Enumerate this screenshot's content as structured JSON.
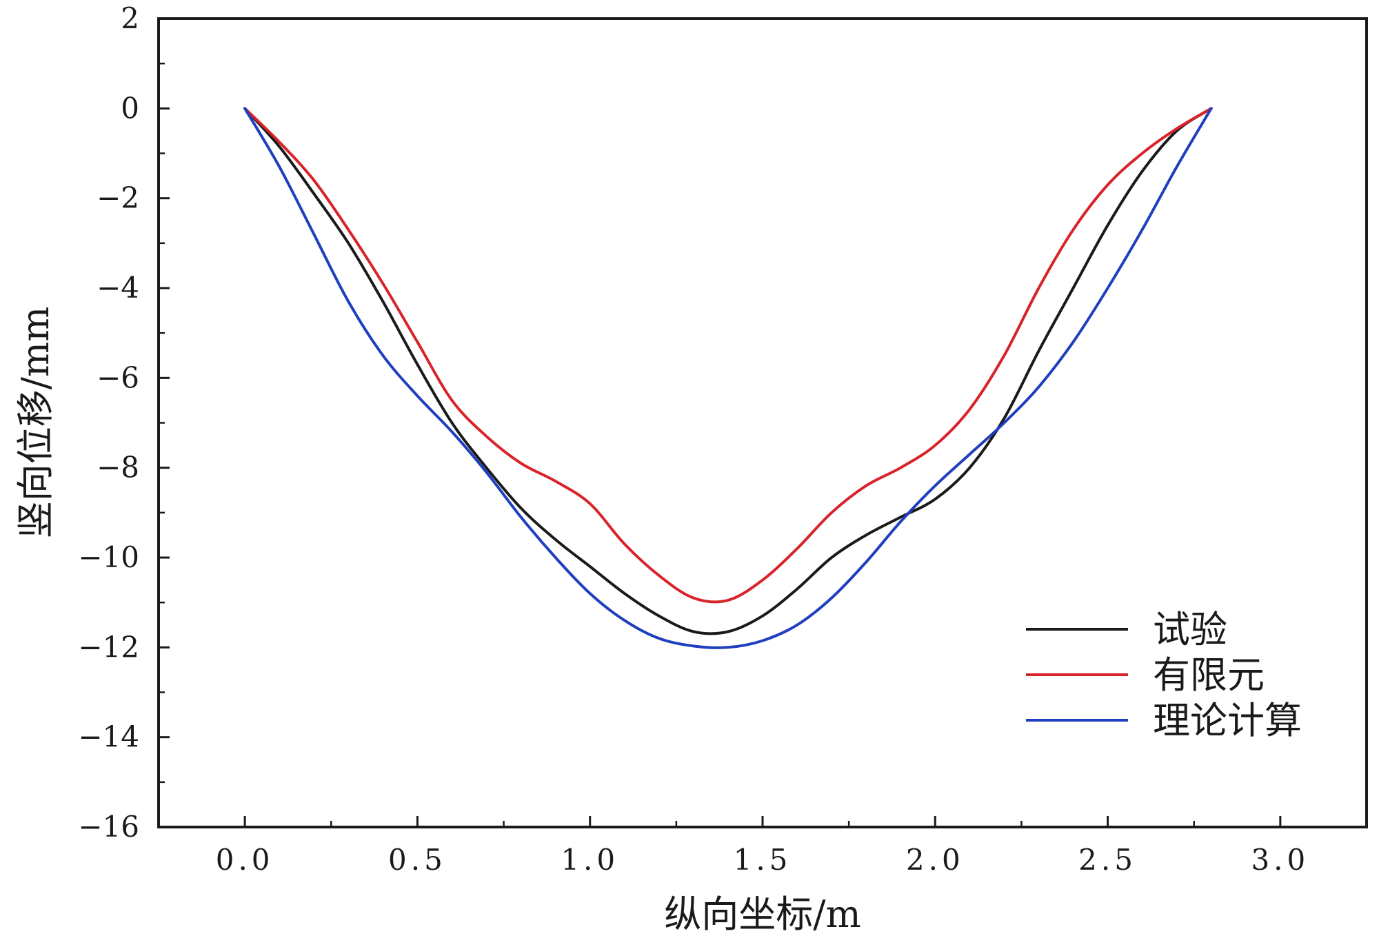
{
  "chart_data": {
    "type": "line",
    "xlabel": "纵向坐标/m",
    "ylabel": "竖向位移/mm",
    "xlim": [
      -0.25,
      3.25
    ],
    "ylim": [
      -16,
      2
    ],
    "xticks": [
      {
        "value": 0.0,
        "label": "0.0"
      },
      {
        "value": 0.5,
        "label": "0.5"
      },
      {
        "value": 1.0,
        "label": "1.0"
      },
      {
        "value": 1.5,
        "label": "1.5"
      },
      {
        "value": 2.0,
        "label": "2.0"
      },
      {
        "value": 2.5,
        "label": "2.5"
      },
      {
        "value": 3.0,
        "label": "3.0"
      }
    ],
    "yticks": [
      {
        "value": 2,
        "label": "2"
      },
      {
        "value": 0,
        "label": "0"
      },
      {
        "value": -2,
        "label": "−2"
      },
      {
        "value": -4,
        "label": "−4"
      },
      {
        "value": -6,
        "label": "−6"
      },
      {
        "value": -8,
        "label": "−8"
      },
      {
        "value": -10,
        "label": "−10"
      },
      {
        "value": -12,
        "label": "−12"
      },
      {
        "value": -14,
        "label": "−14"
      },
      {
        "value": -16,
        "label": "−16"
      }
    ],
    "legend_position": "bottom-right",
    "grid": false,
    "series": [
      {
        "name": "试验",
        "color": "#1a1a1a",
        "x": [
          0.0,
          0.1,
          0.2,
          0.3,
          0.4,
          0.5,
          0.6,
          0.7,
          0.8,
          0.9,
          1.0,
          1.1,
          1.2,
          1.3,
          1.4,
          1.5,
          1.6,
          1.7,
          1.8,
          1.9,
          2.0,
          2.1,
          2.2,
          2.3,
          2.4,
          2.5,
          2.6,
          2.7,
          2.8
        ],
        "y": [
          0.0,
          -0.85,
          -1.9,
          -3.0,
          -4.3,
          -5.7,
          -7.0,
          -8.0,
          -8.9,
          -9.6,
          -10.2,
          -10.8,
          -11.3,
          -11.65,
          -11.65,
          -11.3,
          -10.7,
          -10.0,
          -9.5,
          -9.1,
          -8.7,
          -8.0,
          -6.9,
          -5.4,
          -4.0,
          -2.6,
          -1.4,
          -0.5,
          0.0
        ]
      },
      {
        "name": "有限元",
        "color": "#d8232a",
        "x": [
          0.0,
          0.1,
          0.2,
          0.3,
          0.4,
          0.5,
          0.6,
          0.7,
          0.8,
          0.9,
          1.0,
          1.1,
          1.2,
          1.3,
          1.4,
          1.5,
          1.6,
          1.7,
          1.8,
          1.9,
          2.0,
          2.1,
          2.2,
          2.3,
          2.4,
          2.5,
          2.6,
          2.7,
          2.8
        ],
        "y": [
          0.0,
          -0.75,
          -1.6,
          -2.7,
          -3.9,
          -5.2,
          -6.5,
          -7.3,
          -7.9,
          -8.3,
          -8.8,
          -9.7,
          -10.4,
          -10.9,
          -10.95,
          -10.5,
          -9.8,
          -9.0,
          -8.4,
          -8.0,
          -7.5,
          -6.7,
          -5.5,
          -4.0,
          -2.7,
          -1.7,
          -1.0,
          -0.45,
          0.0
        ]
      },
      {
        "name": "理论计算",
        "color": "#1f3fbf",
        "x": [
          0.0,
          0.1,
          0.2,
          0.3,
          0.4,
          0.5,
          0.6,
          0.7,
          0.8,
          0.9,
          1.0,
          1.1,
          1.2,
          1.3,
          1.4,
          1.5,
          1.6,
          1.7,
          1.8,
          1.9,
          2.0,
          2.1,
          2.2,
          2.3,
          2.4,
          2.5,
          2.6,
          2.7,
          2.8
        ],
        "y": [
          0.0,
          -1.3,
          -2.8,
          -4.3,
          -5.5,
          -6.4,
          -7.2,
          -8.1,
          -9.1,
          -10.0,
          -10.8,
          -11.4,
          -11.8,
          -11.97,
          -12.0,
          -11.85,
          -11.5,
          -10.9,
          -10.1,
          -9.2,
          -8.4,
          -7.7,
          -7.0,
          -6.2,
          -5.2,
          -4.0,
          -2.7,
          -1.3,
          0.0
        ]
      }
    ]
  }
}
